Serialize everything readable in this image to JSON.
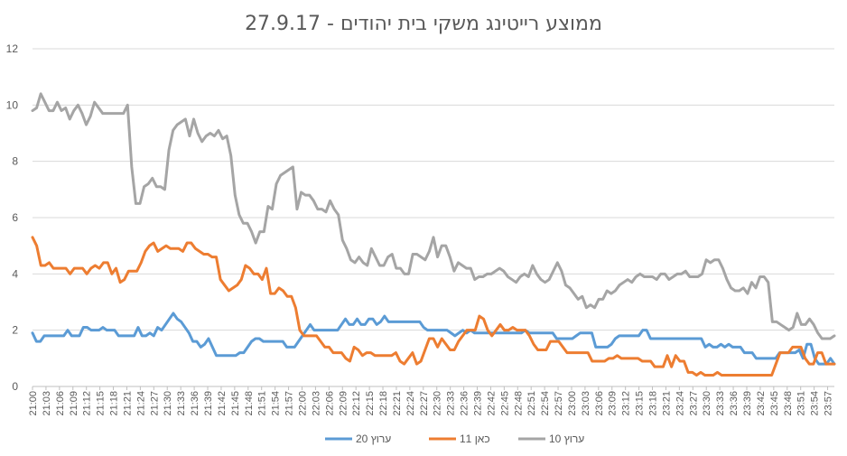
{
  "chart_data": {
    "type": "line",
    "title": "ממוצע רייטינג משקי בית יהודים - 27.9.17",
    "xlabel": "",
    "ylabel": "",
    "ylim": [
      0,
      12
    ],
    "y_ticks": [
      "0",
      "2",
      "4",
      "6",
      "8",
      "10",
      "12"
    ],
    "grid": true,
    "legend_position": "bottom",
    "x_start": "21:00",
    "x_end": "23:59",
    "x_tick_labels": [
      "21:00",
      "21:03",
      "21:06",
      "21:09",
      "21:12",
      "21:15",
      "21:18",
      "21:21",
      "21:24",
      "21:27",
      "21:30",
      "21:33",
      "21:36",
      "21:39",
      "21:42",
      "21:45",
      "21:48",
      "21:51",
      "21:54",
      "21:57",
      "22:00",
      "22:03",
      "22:06",
      "22:09",
      "22:12",
      "22:15",
      "22:18",
      "22:21",
      "22:24",
      "22:27",
      "22:30",
      "22:33",
      "22:36",
      "22:39",
      "22:42",
      "22:45",
      "22:48",
      "22:51",
      "22:54",
      "22:57",
      "23:00",
      "23:03",
      "23:06",
      "23:09",
      "23:12",
      "23:15",
      "23:18",
      "23:21",
      "23:24",
      "23:27",
      "23:30",
      "23:33",
      "23:36",
      "23:39",
      "23:42",
      "23:45",
      "23:48",
      "23:51",
      "23:54",
      "23:57"
    ],
    "series": [
      {
        "name": "ערוץ 20",
        "color": "#5b9bd5",
        "values": [
          1.9,
          1.6,
          1.6,
          1.8,
          1.8,
          1.8,
          1.8,
          1.8,
          1.8,
          2.0,
          1.8,
          1.8,
          1.8,
          2.1,
          2.1,
          2.0,
          2.0,
          2.0,
          2.1,
          2.0,
          2.0,
          2.0,
          1.8,
          1.8,
          1.8,
          1.8,
          1.8,
          2.1,
          1.8,
          1.8,
          1.9,
          1.8,
          2.1,
          2.0,
          2.2,
          2.4,
          2.6,
          2.4,
          2.3,
          2.1,
          1.9,
          1.6,
          1.6,
          1.4,
          1.5,
          1.7,
          1.4,
          1.1,
          1.1,
          1.1,
          1.1,
          1.1,
          1.1,
          1.2,
          1.2,
          1.4,
          1.6,
          1.7,
          1.7,
          1.6,
          1.6,
          1.6,
          1.6,
          1.6,
          1.6,
          1.4,
          1.4,
          1.4,
          1.6,
          1.8,
          2.0,
          2.2,
          2.0,
          2.0,
          2.0,
          2.0,
          2.0,
          2.0,
          2.0,
          2.2,
          2.4,
          2.2,
          2.2,
          2.4,
          2.2,
          2.2,
          2.4,
          2.4,
          2.2,
          2.3,
          2.5,
          2.3,
          2.3,
          2.3,
          2.3,
          2.3,
          2.3,
          2.3,
          2.3,
          2.3,
          2.1,
          2.0,
          2.0,
          2.0,
          2.0,
          2.0,
          2.0,
          1.9,
          1.8,
          1.9,
          2.0,
          1.9,
          2.0,
          1.9,
          1.9,
          1.9,
          1.9,
          1.9,
          1.9,
          1.9,
          1.9,
          1.9,
          1.9,
          1.9,
          1.9,
          1.9,
          2.0,
          1.9,
          1.9,
          1.9,
          1.9,
          1.9,
          1.9,
          1.9,
          1.7,
          1.7,
          1.7,
          1.7,
          1.7,
          1.8,
          1.9,
          1.9,
          1.9,
          1.9,
          1.4,
          1.4,
          1.4,
          1.4,
          1.5,
          1.7,
          1.8,
          1.8,
          1.8,
          1.8,
          1.8,
          1.8,
          2.0,
          2.0,
          1.7,
          1.7,
          1.7,
          1.7,
          1.7,
          1.7,
          1.7,
          1.7,
          1.7,
          1.7,
          1.7,
          1.7,
          1.7,
          1.7,
          1.4,
          1.5,
          1.4,
          1.4,
          1.5,
          1.4,
          1.5,
          1.4,
          1.4,
          1.4,
          1.2,
          1.2,
          1.2,
          1.0,
          1.0,
          1.0,
          1.0,
          1.0,
          1.0,
          1.2,
          1.2,
          1.2,
          1.2,
          1.2,
          1.3,
          1.0,
          1.5,
          1.5,
          1.0,
          0.8,
          0.8,
          0.8,
          1.0,
          0.8
        ]
      },
      {
        "name": "כאן 11",
        "color": "#ed7d31",
        "values": [
          5.3,
          5.0,
          4.3,
          4.3,
          4.4,
          4.2,
          4.2,
          4.2,
          4.2,
          4.0,
          4.2,
          4.2,
          4.2,
          4.0,
          4.2,
          4.3,
          4.2,
          4.4,
          4.4,
          4.0,
          4.2,
          3.7,
          3.8,
          4.1,
          4.1,
          4.1,
          4.4,
          4.8,
          5.0,
          5.1,
          4.8,
          4.9,
          5.0,
          4.9,
          4.9,
          4.9,
          4.8,
          5.1,
          5.1,
          4.9,
          4.8,
          4.7,
          4.7,
          4.6,
          4.6,
          3.8,
          3.6,
          3.4,
          3.5,
          3.6,
          3.8,
          4.3,
          4.2,
          4.0,
          4.0,
          3.8,
          4.2,
          3.3,
          3.3,
          3.5,
          3.4,
          3.2,
          3.2,
          2.8,
          2.0,
          1.8,
          1.8,
          1.8,
          1.8,
          1.6,
          1.4,
          1.4,
          1.2,
          1.2,
          1.2,
          1.0,
          0.9,
          1.4,
          1.3,
          1.1,
          1.2,
          1.2,
          1.1,
          1.1,
          1.1,
          1.1,
          1.1,
          1.2,
          0.9,
          0.8,
          1.0,
          1.2,
          0.8,
          0.9,
          1.3,
          1.7,
          1.7,
          1.4,
          1.7,
          1.5,
          1.3,
          1.3,
          1.6,
          1.8,
          2.0,
          2.0,
          2.0,
          2.5,
          2.4,
          2.0,
          1.8,
          2.0,
          2.2,
          2.0,
          2.0,
          2.1,
          2.0,
          2.0,
          2.0,
          1.8,
          1.5,
          1.3,
          1.3,
          1.3,
          1.6,
          1.6,
          1.6,
          1.4,
          1.2,
          1.2,
          1.2,
          1.2,
          1.2,
          1.2,
          0.9,
          0.9,
          0.9,
          0.9,
          1.0,
          1.0,
          1.1,
          1.0,
          1.0,
          1.0,
          1.0,
          1.0,
          0.9,
          0.9,
          0.9,
          0.7,
          0.7,
          0.7,
          1.1,
          0.7,
          1.1,
          0.9,
          0.9,
          0.5,
          0.5,
          0.4,
          0.5,
          0.4,
          0.4,
          0.4,
          0.5,
          0.4,
          0.4,
          0.4,
          0.4,
          0.4,
          0.4,
          0.4,
          0.4,
          0.4,
          0.4,
          0.4,
          0.4,
          0.4,
          0.8,
          1.2,
          1.2,
          1.2,
          1.4,
          1.4,
          1.4,
          1.0,
          0.8,
          0.8,
          1.2,
          1.2,
          0.8,
          0.8,
          0.8
        ]
      },
      {
        "name": "ערוץ 10",
        "color": "#a5a5a5",
        "values": [
          9.8,
          9.9,
          10.4,
          10.1,
          9.8,
          9.8,
          10.1,
          9.8,
          9.9,
          9.5,
          9.8,
          10.0,
          9.7,
          9.3,
          9.6,
          10.1,
          9.9,
          9.7,
          9.7,
          9.7,
          9.7,
          9.7,
          9.7,
          10.0,
          7.8,
          6.5,
          6.5,
          7.1,
          7.2,
          7.4,
          7.1,
          7.1,
          7.0,
          8.4,
          9.1,
          9.3,
          9.4,
          9.5,
          8.9,
          9.5,
          9.0,
          8.7,
          8.9,
          9.0,
          8.9,
          9.1,
          8.8,
          8.9,
          8.2,
          6.8,
          6.1,
          5.8,
          5.8,
          5.5,
          5.1,
          5.5,
          5.5,
          6.4,
          6.3,
          7.2,
          7.5,
          7.6,
          7.7,
          7.8,
          6.3,
          6.9,
          6.8,
          6.8,
          6.6,
          6.3,
          6.3,
          6.2,
          6.6,
          6.3,
          6.1,
          5.2,
          4.9,
          4.5,
          4.4,
          4.6,
          4.4,
          4.3,
          4.9,
          4.6,
          4.3,
          4.3,
          4.6,
          4.7,
          4.2,
          4.2,
          4.0,
          4.0,
          4.7,
          4.7,
          4.6,
          4.5,
          4.8,
          5.3,
          4.6,
          5.0,
          5.0,
          4.6,
          4.1,
          4.4,
          4.3,
          4.2,
          4.2,
          3.8,
          3.9,
          3.9,
          4.0,
          4.0,
          4.1,
          4.2,
          4.1,
          3.9,
          3.8,
          3.7,
          3.9,
          4.0,
          3.9,
          4.3,
          4.0,
          3.8,
          3.7,
          3.8,
          4.1,
          4.4,
          4.1,
          3.6,
          3.5,
          3.3,
          3.1,
          3.2,
          2.8,
          2.9,
          2.8,
          3.1,
          3.1,
          3.4,
          3.3,
          3.4,
          3.6,
          3.7,
          3.8,
          3.7,
          3.9,
          4.0,
          3.9,
          3.9,
          3.9,
          3.8,
          4.0,
          4.0,
          3.8,
          3.9,
          4.0,
          4.0,
          4.1,
          3.9,
          3.9,
          3.9,
          4.0,
          4.5,
          4.4,
          4.5,
          4.5,
          4.2,
          3.8,
          3.5,
          3.4,
          3.4,
          3.5,
          3.3,
          3.7,
          3.5,
          3.9,
          3.9,
          3.7,
          2.3,
          2.3,
          2.2,
          2.1,
          2.0,
          2.1,
          2.6,
          2.2,
          2.2,
          2.4,
          2.2,
          1.9,
          1.7,
          1.7,
          1.7,
          1.8
        ]
      }
    ]
  }
}
